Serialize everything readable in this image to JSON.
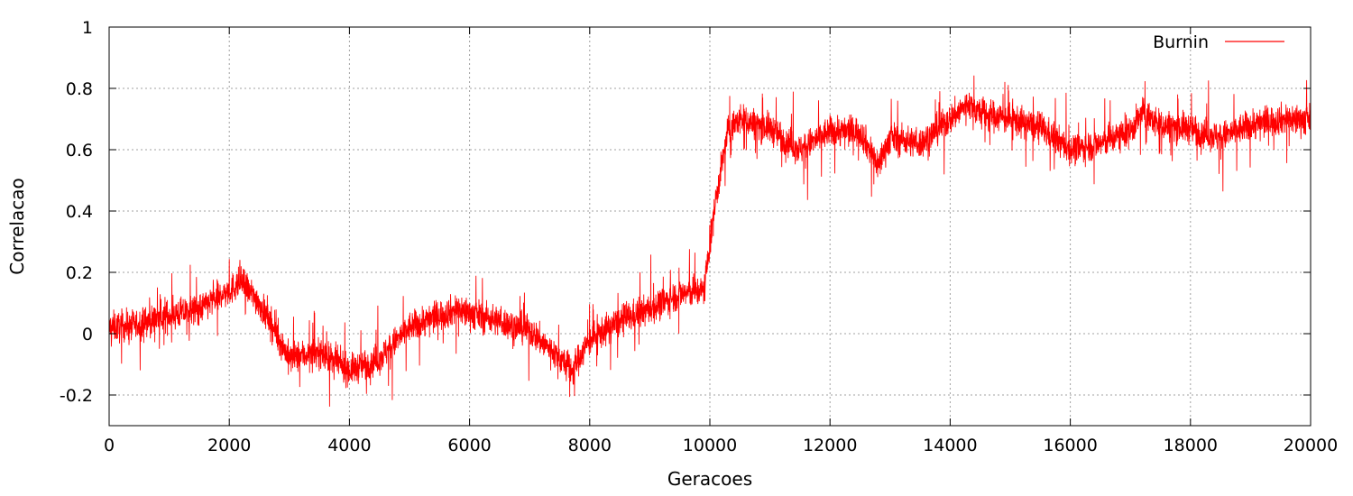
{
  "chart_data": {
    "type": "line",
    "xlabel": "Geracoes",
    "ylabel": "Correlacao",
    "xlim": [
      0,
      20000
    ],
    "ylim": [
      -0.3,
      1.0
    ],
    "x_ticks": [
      0,
      2000,
      4000,
      6000,
      8000,
      10000,
      12000,
      14000,
      16000,
      18000,
      20000
    ],
    "y_ticks": [
      -0.2,
      0,
      0.2,
      0.4,
      0.6,
      0.8,
      1
    ],
    "y_tick_labels": [
      "-0.2",
      "0",
      "0.2",
      "0.4",
      "0.6",
      "0.8",
      "1"
    ],
    "grid": true,
    "legend_position": "top-right",
    "series": [
      {
        "name": "Burnin",
        "color": "#ff0000",
        "x": [
          0,
          500,
          1000,
          1500,
          2000,
          2200,
          2500,
          3000,
          3500,
          4000,
          4500,
          5000,
          5500,
          5800,
          6500,
          7000,
          7500,
          7700,
          8000,
          8500,
          9000,
          9500,
          9900,
          10100,
          10300,
          10500,
          11000,
          11500,
          12000,
          12500,
          12800,
          13000,
          13500,
          14000,
          14300,
          14500,
          15000,
          15500,
          16000,
          16500,
          17000,
          17200,
          17500,
          18000,
          18500,
          19000,
          19500,
          20000
        ],
        "y": [
          0.02,
          0.03,
          0.06,
          0.08,
          0.14,
          0.17,
          0.1,
          -0.08,
          -0.06,
          -0.12,
          -0.08,
          0.02,
          0.06,
          0.08,
          0.04,
          0.01,
          -0.08,
          -0.12,
          -0.02,
          0.04,
          0.08,
          0.13,
          0.14,
          0.44,
          0.66,
          0.7,
          0.67,
          0.6,
          0.66,
          0.66,
          0.55,
          0.64,
          0.62,
          0.7,
          0.75,
          0.72,
          0.7,
          0.67,
          0.6,
          0.62,
          0.66,
          0.72,
          0.68,
          0.67,
          0.64,
          0.68,
          0.7,
          0.7
        ],
        "noise_amplitude": 0.09
      }
    ]
  }
}
